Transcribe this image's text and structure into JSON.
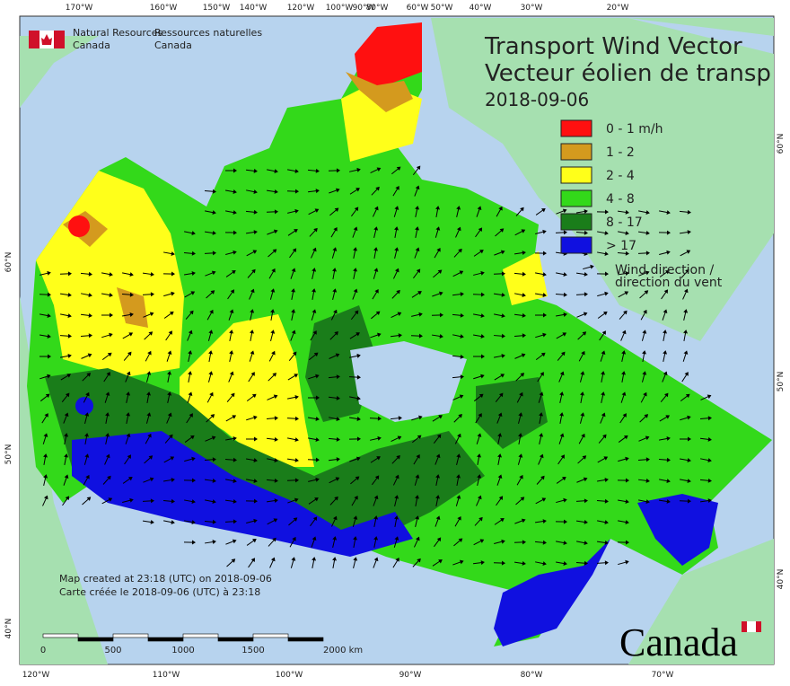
{
  "header": {
    "agency_en": "Natural Resources\nCanada",
    "agency_fr": "Ressources naturelles\nCanada"
  },
  "title": {
    "line1": "Transport Wind Vector",
    "line2": "Vecteur éolien de transp",
    "date": "2018-09-06"
  },
  "legend": {
    "items": [
      {
        "label": "0 - 1 m/h",
        "color": "#ff1010"
      },
      {
        "label": "1 - 2",
        "color": "#d49a1e"
      },
      {
        "label": "2 - 4",
        "color": "#ffff1a"
      },
      {
        "label": "4 - 8",
        "color": "#33d91a"
      },
      {
        "label": "8 - 17",
        "color": "#1a7d1a"
      },
      {
        "label": "> 17",
        "color": "#1010e0"
      }
    ],
    "wind": "Wind direction /\ndirection du vent"
  },
  "axes": {
    "top": [
      "170°W",
      "160°W",
      "150°W",
      "140°W",
      "120°W",
      "100°W",
      "90°W",
      "80°W",
      "60°W",
      "50°W",
      "40°W",
      "30°W",
      "20°W"
    ],
    "bottom": [
      "120°W",
      "110°W",
      "100°W",
      "90°W",
      "80°W",
      "70°W"
    ],
    "left": [
      "60°N",
      "50°N",
      "40°N"
    ],
    "right": [
      "60°N",
      "50°N",
      "40°N"
    ]
  },
  "footer": {
    "created_en": "Map created at 23:18 (UTC) on 2018-09-06",
    "created_fr": "Carte créée le 2018-09-06 (UTC) à 23:18",
    "wordmark": "Canada"
  },
  "scale_bar": [
    "0",
    "500",
    "1000",
    "1500",
    "2000 km"
  ]
}
